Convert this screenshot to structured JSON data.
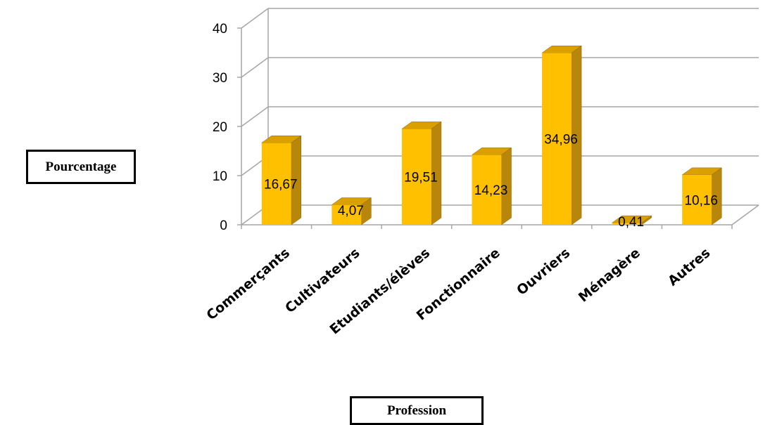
{
  "chart_data": {
    "type": "bar",
    "categories": [
      "Commerçants",
      "Cultivateurs",
      "Etudiants/élèves",
      "Fonctionnaire",
      "Ouvriers",
      "Ménagère",
      "Autres"
    ],
    "values": [
      16.67,
      4.07,
      19.51,
      14.23,
      34.96,
      0.41,
      10.16
    ],
    "data_labels": [
      "16,67",
      "4,07",
      "19,51",
      "14,23",
      "34,96",
      "0,41",
      "10,16"
    ],
    "ylim": [
      0,
      40
    ],
    "yticks": [
      0,
      10,
      20,
      30,
      40
    ],
    "xlabel": "Profession",
    "ylabel": "Pourcentage",
    "grid": true,
    "style": "3d-column",
    "colors": {
      "bar_front": "#FFC000",
      "bar_side": "#B8860B",
      "bar_top": "#D9A000",
      "grid": "#A6A6A6"
    }
  }
}
